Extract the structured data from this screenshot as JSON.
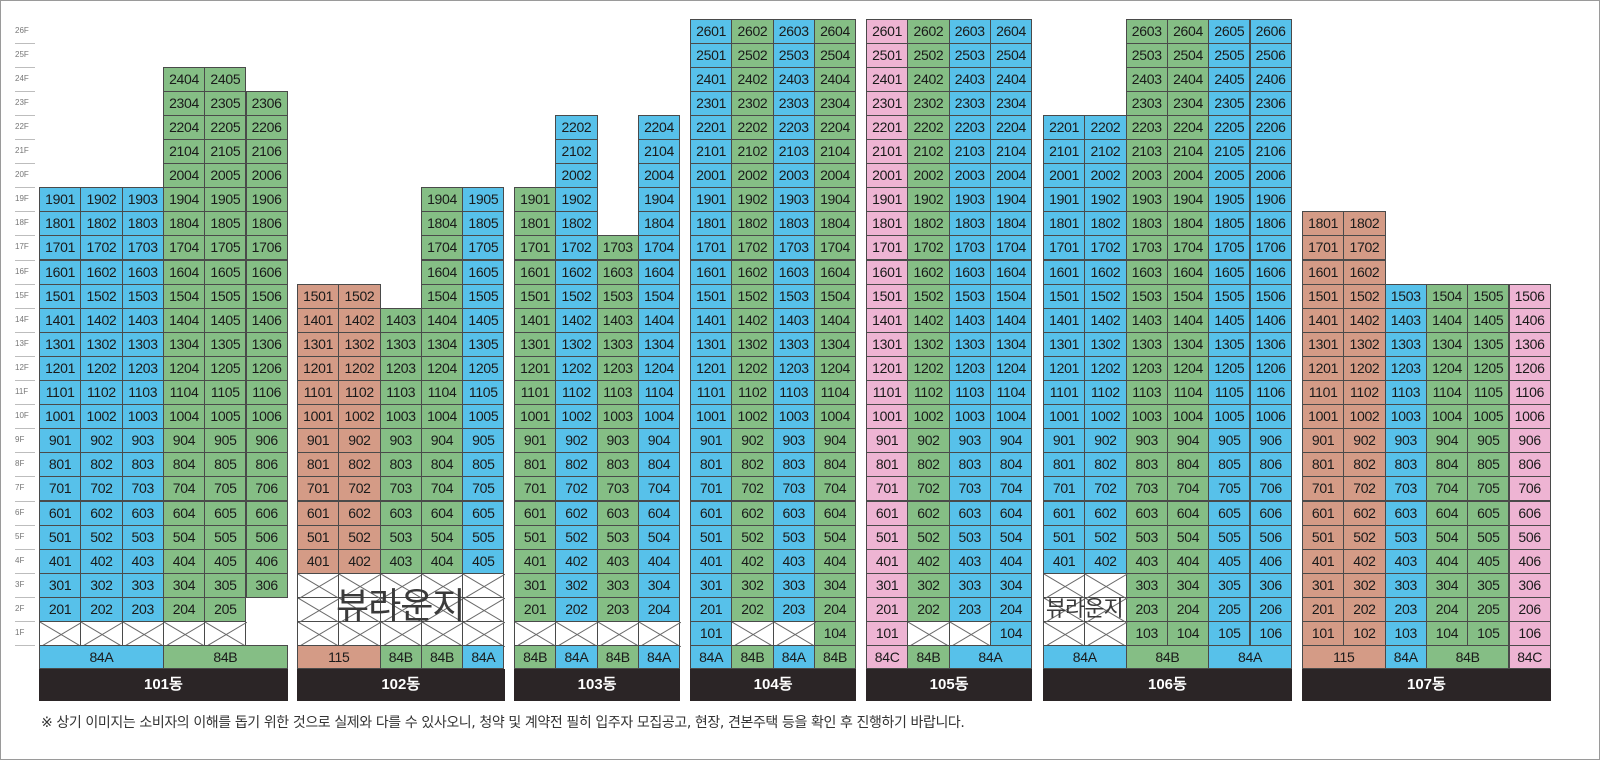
{
  "colors": {
    "b": "#57c1ea",
    "g": "#85be85",
    "r": "#d49b86",
    "p": "#eeb4d3",
    "label_bg": "#2b2526"
  },
  "floor_axis": [
    "1F",
    "2F",
    "3F",
    "4F",
    "5F",
    "6F",
    "7F",
    "8F",
    "9F",
    "10F",
    "11F",
    "12F",
    "13F",
    "14F",
    "15F",
    "16F",
    "17F",
    "18F",
    "19F",
    "20F",
    "21F",
    "22F",
    "23F",
    "24F",
    "25F",
    "26F"
  ],
  "buildings": [
    {
      "name": "101동",
      "lines": [
        {
          "line": "01",
          "color": "b",
          "min": 2,
          "max": 19
        },
        {
          "line": "02",
          "color": "b",
          "min": 2,
          "max": 19
        },
        {
          "line": "03",
          "color": "b",
          "min": 2,
          "max": 19
        },
        {
          "line": "04",
          "color": "g",
          "min": 2,
          "max": 24
        },
        {
          "line": "05",
          "color": "g",
          "min": 2,
          "max": 24
        },
        {
          "line": "06",
          "color": "g",
          "min": 3,
          "max": 23
        }
      ],
      "crosses": [
        [
          0,
          5,
          1,
          1
        ],
        [
          1,
          1,
          1,
          1
        ],
        [
          2,
          1,
          1,
          1
        ],
        [
          3,
          1,
          1,
          1
        ],
        [
          4,
          1,
          1,
          1
        ],
        [
          5,
          1,
          2,
          1
        ]
      ],
      "types": [
        {
          "label": "84A",
          "span": 3,
          "color": "b"
        },
        {
          "label": "84B",
          "span": 3,
          "color": "g"
        }
      ]
    },
    {
      "name": "102동",
      "lines": [
        {
          "line": "01",
          "color": "r",
          "min": 4,
          "max": 15
        },
        {
          "line": "02",
          "color": "r",
          "min": 4,
          "max": 15
        },
        {
          "line": "03",
          "color": "g",
          "min": 4,
          "max": 14
        },
        {
          "line": "04",
          "color": "g",
          "min": 4,
          "max": 19
        },
        {
          "line": "05",
          "color": "b",
          "min": 4,
          "max": 19
        }
      ],
      "crosses": [
        [
          0,
          5,
          1,
          3
        ]
      ],
      "lounge": {
        "text": "뷰라운지",
        "start": 0,
        "end": 5
      },
      "types": [
        {
          "label": "115",
          "span": 2,
          "color": "r"
        },
        {
          "label": "84B",
          "span": 1,
          "color": "g"
        },
        {
          "label": "84B",
          "span": 1,
          "color": "g"
        },
        {
          "label": "84A",
          "span": 1,
          "color": "b"
        }
      ]
    },
    {
      "name": "103동",
      "lines": [
        {
          "line": "01",
          "color": "g",
          "min": 2,
          "max": 19
        },
        {
          "line": "02",
          "color": "b",
          "min": 2,
          "max": 22
        },
        {
          "line": "03",
          "color": "g",
          "min": 2,
          "max": 17
        },
        {
          "line": "04",
          "color": "b",
          "min": 2,
          "max": 22
        }
      ],
      "skip": [
        [
          1,
          20
        ],
        [
          1,
          21
        ],
        [
          1,
          22
        ]
      ],
      "skip_note": "01 line has 19F max; 02 has 20-22 except 2202 shown",
      "crosses": [
        [
          0,
          4,
          1,
          1
        ]
      ],
      "types": [
        {
          "label": "84B",
          "span": 1,
          "color": "g"
        },
        {
          "label": "84A",
          "span": 1,
          "color": "b"
        },
        {
          "label": "84B",
          "span": 1,
          "color": "g"
        },
        {
          "label": "84A",
          "span": 1,
          "color": "b"
        }
      ]
    },
    {
      "name": "104동",
      "lines": [
        {
          "line": "01",
          "color": "b",
          "min": 1,
          "max": 26
        },
        {
          "line": "02",
          "color": "g",
          "min": 2,
          "max": 26
        },
        {
          "line": "03",
          "color": "b",
          "min": 2,
          "max": 26
        },
        {
          "line": "04",
          "color": "g",
          "min": 1,
          "max": 26
        }
      ],
      "crosses": [
        [
          1,
          3,
          1,
          1
        ]
      ],
      "types": [
        {
          "label": "84A",
          "span": 1,
          "color": "b"
        },
        {
          "label": "84B",
          "span": 1,
          "color": "g"
        },
        {
          "label": "84A",
          "span": 1,
          "color": "b"
        },
        {
          "label": "84B",
          "span": 1,
          "color": "g"
        }
      ]
    },
    {
      "name": "105동",
      "lines": [
        {
          "line": "01",
          "color": "p",
          "min": 1,
          "max": 26
        },
        {
          "line": "02",
          "color": "g",
          "min": 2,
          "max": 26
        },
        {
          "line": "03",
          "color": "b",
          "min": 2,
          "max": 26
        },
        {
          "line": "04",
          "color": "b",
          "min": 1,
          "max": 26
        }
      ],
      "crosses": [
        [
          1,
          3,
          1,
          1
        ]
      ],
      "types": [
        {
          "label": "84C",
          "span": 1,
          "color": "p"
        },
        {
          "label": "84B",
          "span": 1,
          "color": "g"
        },
        {
          "label": "84A",
          "span": 2,
          "color": "b"
        }
      ]
    },
    {
      "name": "106동",
      "lines": [
        {
          "line": "01",
          "color": "b",
          "min": 4,
          "max": 22
        },
        {
          "line": "02",
          "color": "b",
          "min": 4,
          "max": 22
        },
        {
          "line": "03",
          "color": "g",
          "min": 1,
          "max": 26
        },
        {
          "line": "04",
          "color": "g",
          "min": 1,
          "max": 26
        },
        {
          "line": "05",
          "color": "b",
          "min": 1,
          "max": 26
        },
        {
          "line": "06",
          "color": "b",
          "min": 1,
          "max": 26
        }
      ],
      "crosses": [
        [
          0,
          2,
          1,
          3
        ]
      ],
      "lounge": {
        "text": "뷰라운지",
        "start": 0,
        "end": 2
      },
      "types": [
        {
          "label": "84A",
          "span": 2,
          "color": "b"
        },
        {
          "label": "84B",
          "span": 2,
          "color": "g"
        },
        {
          "label": "84A",
          "span": 2,
          "color": "b"
        }
      ]
    },
    {
      "name": "107동",
      "lines": [
        {
          "line": "01",
          "color": "r",
          "min": 1,
          "max": 18
        },
        {
          "line": "02",
          "color": "r",
          "min": 1,
          "max": 18
        },
        {
          "line": "03",
          "color": "b",
          "min": 1,
          "max": 15
        },
        {
          "line": "04",
          "color": "g",
          "min": 1,
          "max": 15
        },
        {
          "line": "05",
          "color": "g",
          "min": 1,
          "max": 15
        },
        {
          "line": "06",
          "color": "p",
          "min": 1,
          "max": 15
        }
      ],
      "crosses": [],
      "types": [
        {
          "label": "115",
          "span": 2,
          "color": "r"
        },
        {
          "label": "84A",
          "span": 1,
          "color": "b"
        },
        {
          "label": "84B",
          "span": 2,
          "color": "g"
        },
        {
          "label": "84C",
          "span": 1,
          "color": "p"
        }
      ]
    }
  ],
  "disclaimer": "※ 상기 이미지는 소비자의 이해를 돕기 위한 것으로 실제와 다를 수 있사오니, 청약 및 계약전 필히 입주자 모집공고, 현장, 견본주택 등을 확인 후 진행하기 바랍니다."
}
